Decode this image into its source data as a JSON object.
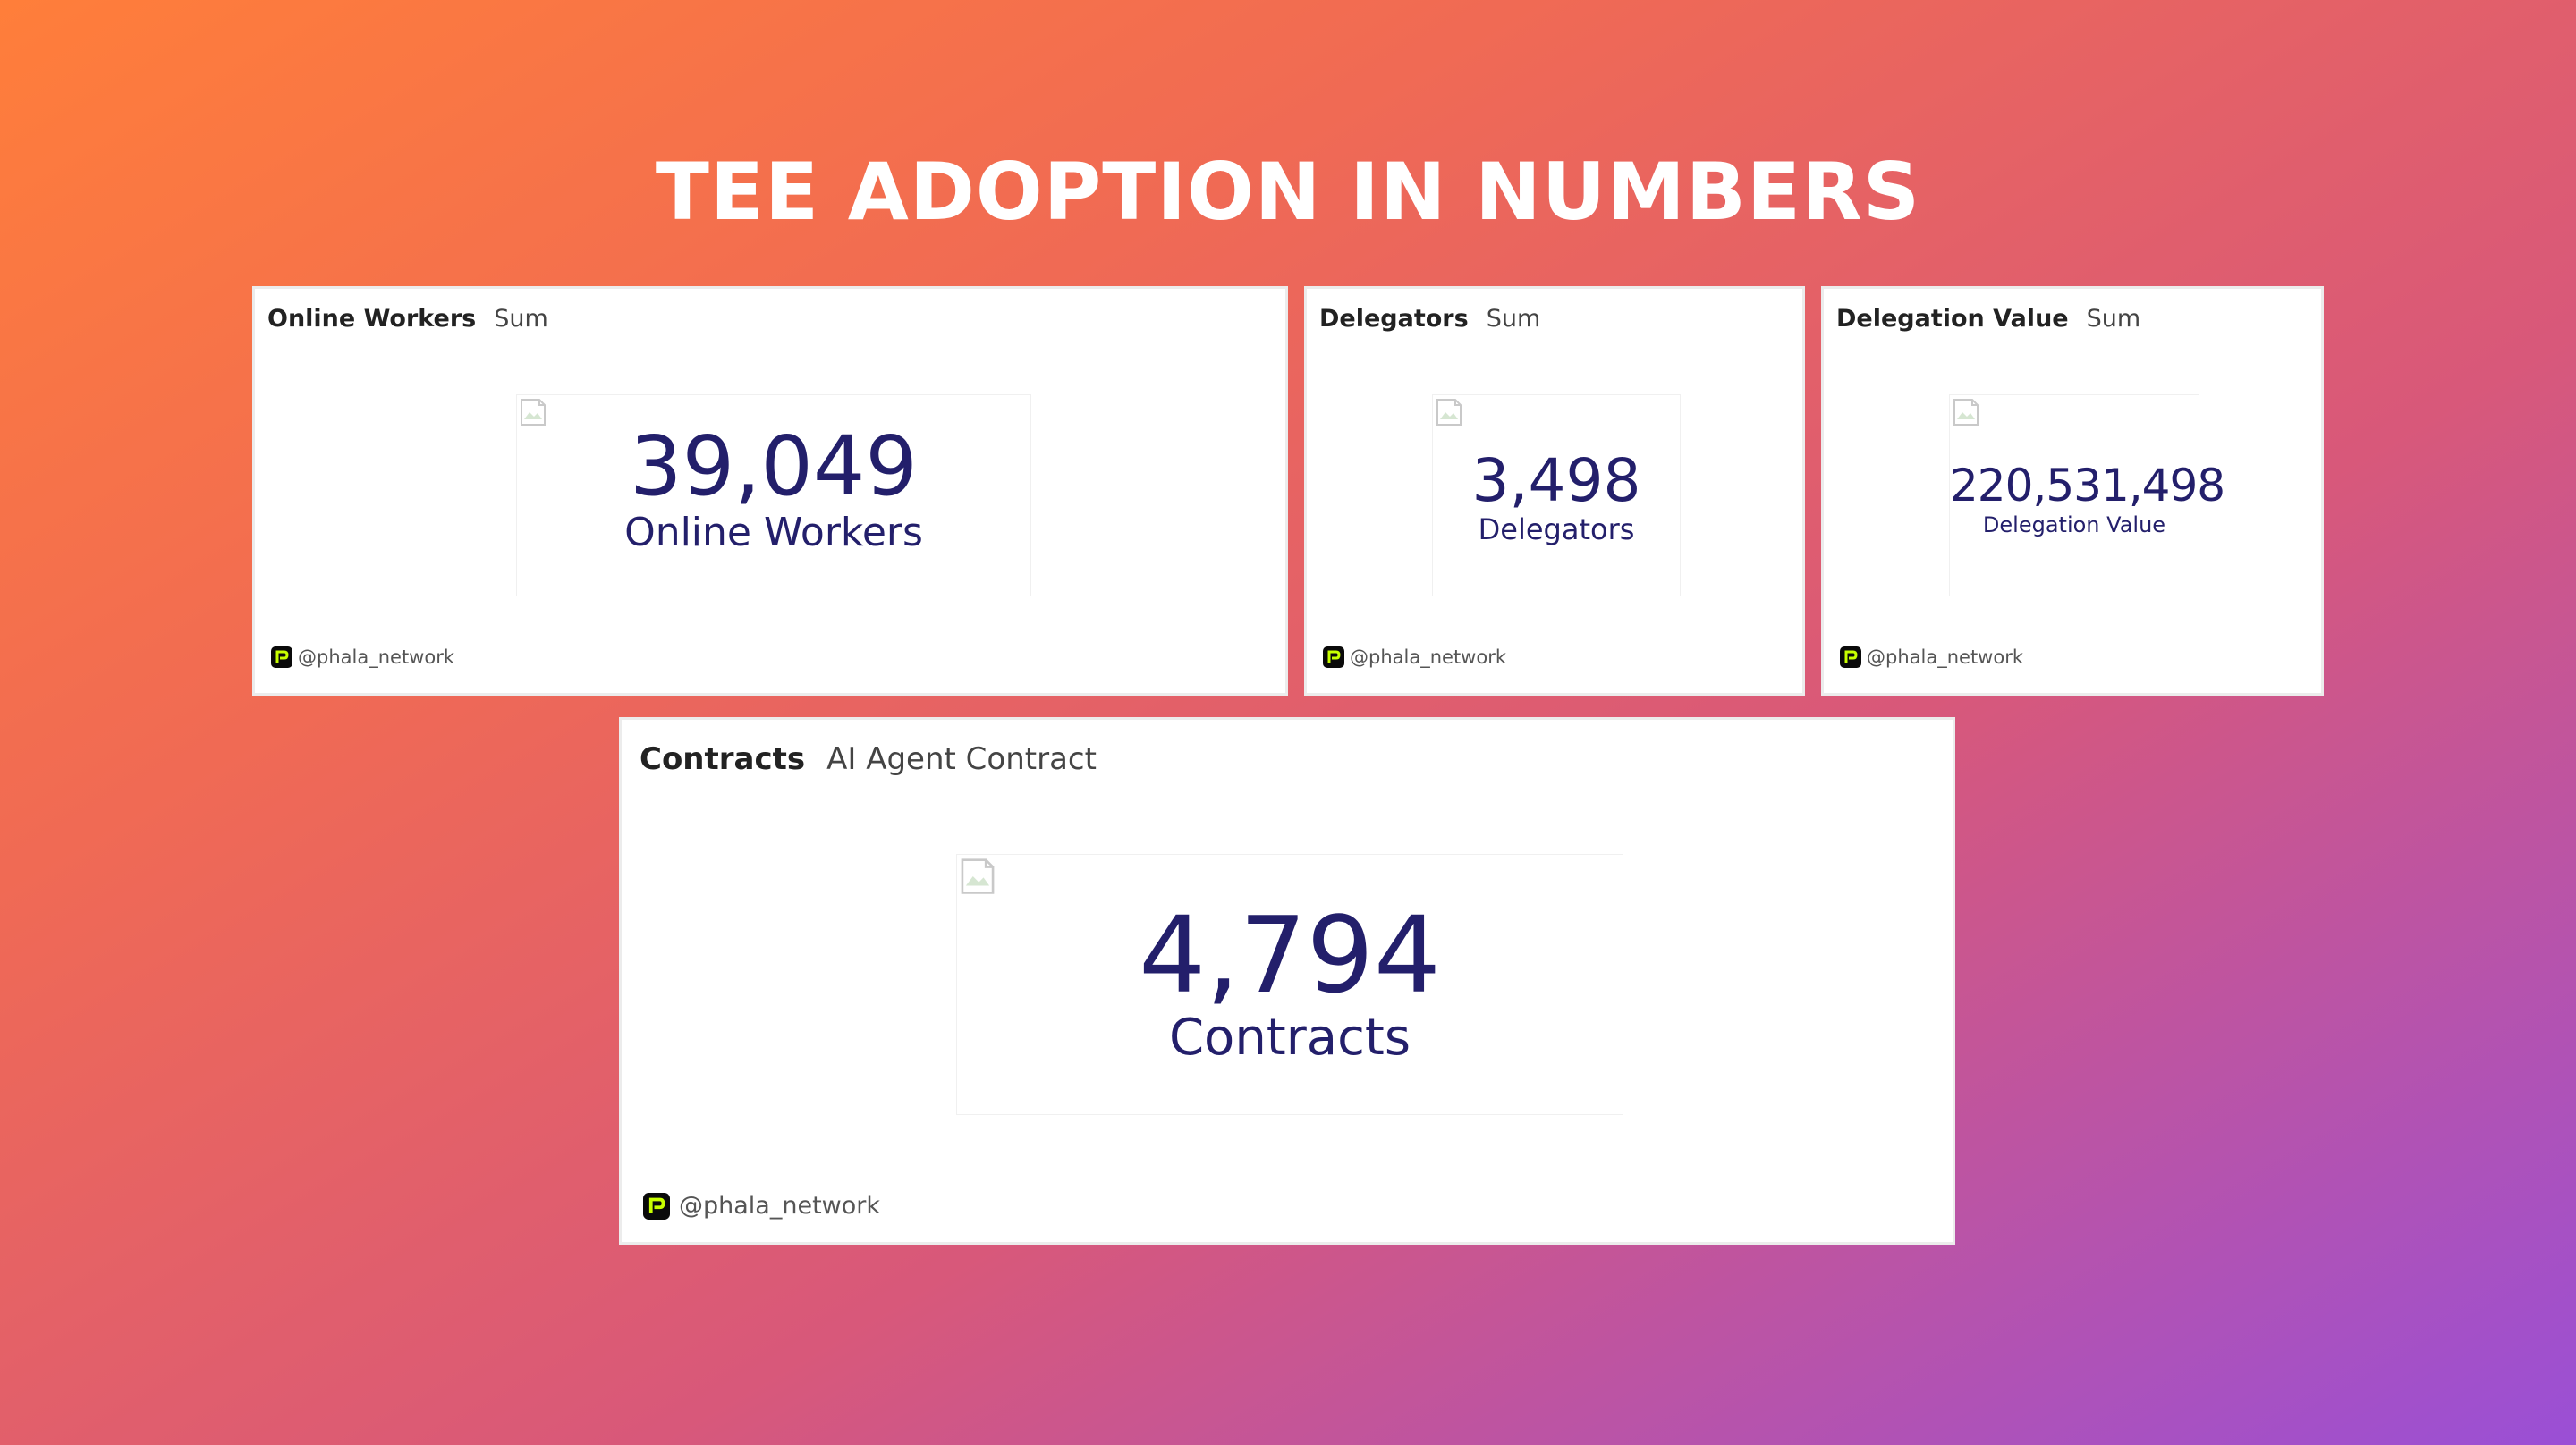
{
  "page": {
    "title": "TEE ADOPTION IN NUMBERS"
  },
  "cards": [
    {
      "title": "Online Workers",
      "subtitle": "Sum",
      "value": "39,049",
      "label": "Online Workers",
      "footer": "@phala_network"
    },
    {
      "title": "Delegators",
      "subtitle": "Sum",
      "value": "3,498",
      "label": "Delegators",
      "footer": "@phala_network"
    },
    {
      "title": "Delegation Value",
      "subtitle": "Sum",
      "value": "220,531,498",
      "label": "Delegation Value",
      "footer": "@phala_network"
    },
    {
      "title": "Contracts",
      "subtitle": "AI Agent Contract",
      "value": "4,794",
      "label": "Contracts",
      "footer": "@phala_network"
    }
  ],
  "colors": {
    "value_text": "#231f6b",
    "logo_bg": "#0a0a0a",
    "logo_accent": "#c8ff00"
  },
  "icons": {
    "footer_logo": "phala-logo-icon",
    "broken_image": "broken-image-icon"
  }
}
